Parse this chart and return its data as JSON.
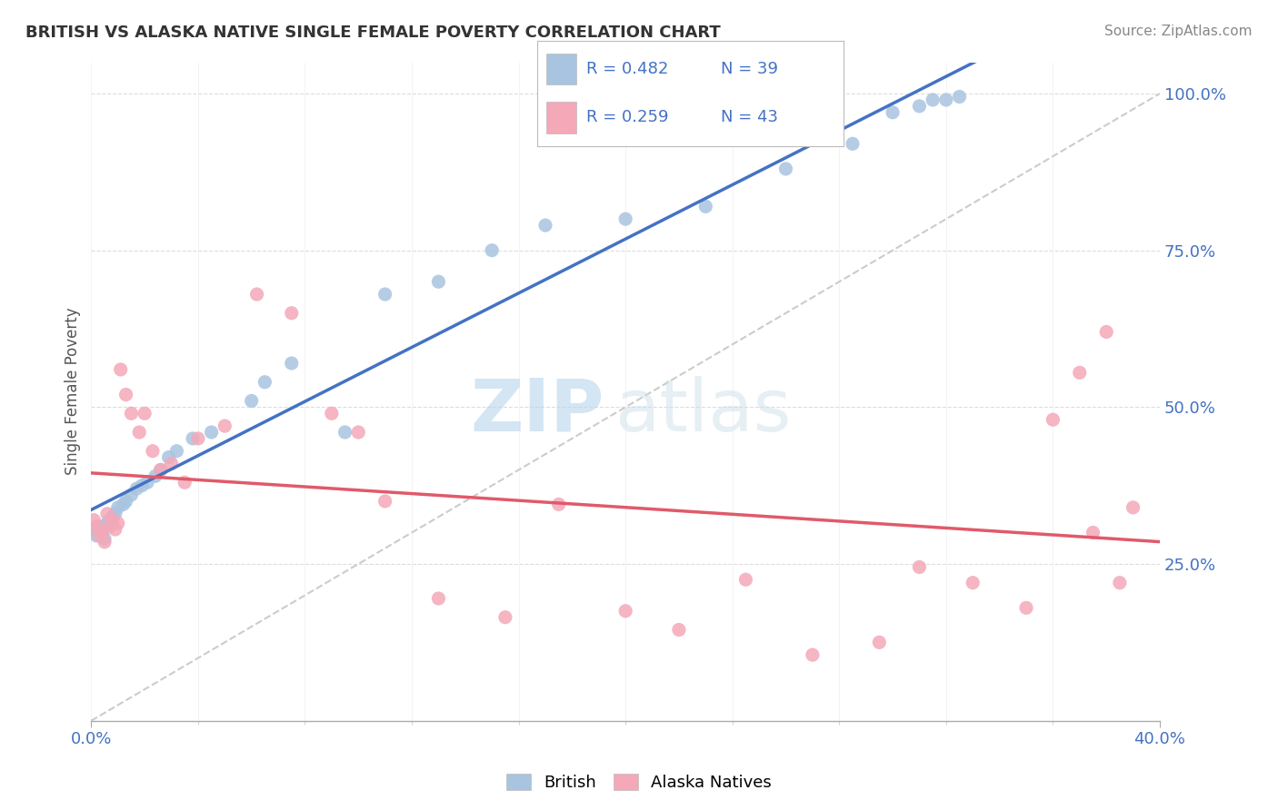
{
  "title": "BRITISH VS ALASKA NATIVE SINGLE FEMALE POVERTY CORRELATION CHART",
  "source": "Source: ZipAtlas.com",
  "ylabel": "Single Female Poverty",
  "xlim": [
    0.0,
    0.4
  ],
  "ylim": [
    0.0,
    1.05
  ],
  "legend_r_british": "R = 0.482",
  "legend_n_british": "N = 39",
  "legend_r_alaska": "R = 0.259",
  "legend_n_alaska": "N = 43",
  "british_color": "#a8c4e0",
  "alaska_color": "#f4a8b8",
  "regression_british_color": "#4472c4",
  "regression_alaska_color": "#e05a6a",
  "diagonal_color": "#cccccc",
  "watermark_zip": "ZIP",
  "watermark_atlas": "atlas",
  "british_x": [
    0.001,
    0.002,
    0.003,
    0.004,
    0.005,
    0.006,
    0.007,
    0.008,
    0.009,
    0.01,
    0.012,
    0.013,
    0.015,
    0.017,
    0.019,
    0.021,
    0.024,
    0.026,
    0.029,
    0.032,
    0.038,
    0.045,
    0.06,
    0.065,
    0.075,
    0.095,
    0.11,
    0.13,
    0.15,
    0.17,
    0.2,
    0.23,
    0.26,
    0.285,
    0.3,
    0.31,
    0.315,
    0.32,
    0.325
  ],
  "british_y": [
    0.305,
    0.295,
    0.31,
    0.3,
    0.29,
    0.315,
    0.32,
    0.325,
    0.33,
    0.34,
    0.345,
    0.35,
    0.36,
    0.37,
    0.375,
    0.38,
    0.39,
    0.4,
    0.42,
    0.43,
    0.45,
    0.46,
    0.51,
    0.54,
    0.57,
    0.46,
    0.68,
    0.7,
    0.75,
    0.79,
    0.8,
    0.82,
    0.88,
    0.92,
    0.97,
    0.98,
    0.99,
    0.99,
    0.995
  ],
  "alaska_x": [
    0.001,
    0.002,
    0.003,
    0.004,
    0.005,
    0.006,
    0.007,
    0.008,
    0.009,
    0.01,
    0.011,
    0.013,
    0.015,
    0.018,
    0.02,
    0.023,
    0.026,
    0.03,
    0.035,
    0.04,
    0.05,
    0.062,
    0.075,
    0.09,
    0.1,
    0.11,
    0.13,
    0.155,
    0.175,
    0.2,
    0.22,
    0.245,
    0.27,
    0.295,
    0.31,
    0.33,
    0.35,
    0.36,
    0.37,
    0.375,
    0.38,
    0.385,
    0.39
  ],
  "alaska_y": [
    0.32,
    0.31,
    0.295,
    0.3,
    0.285,
    0.33,
    0.31,
    0.32,
    0.305,
    0.315,
    0.56,
    0.52,
    0.49,
    0.46,
    0.49,
    0.43,
    0.4,
    0.41,
    0.38,
    0.45,
    0.47,
    0.68,
    0.65,
    0.49,
    0.46,
    0.35,
    0.195,
    0.165,
    0.345,
    0.175,
    0.145,
    0.225,
    0.105,
    0.125,
    0.245,
    0.22,
    0.18,
    0.48,
    0.555,
    0.3,
    0.62,
    0.22,
    0.34
  ]
}
